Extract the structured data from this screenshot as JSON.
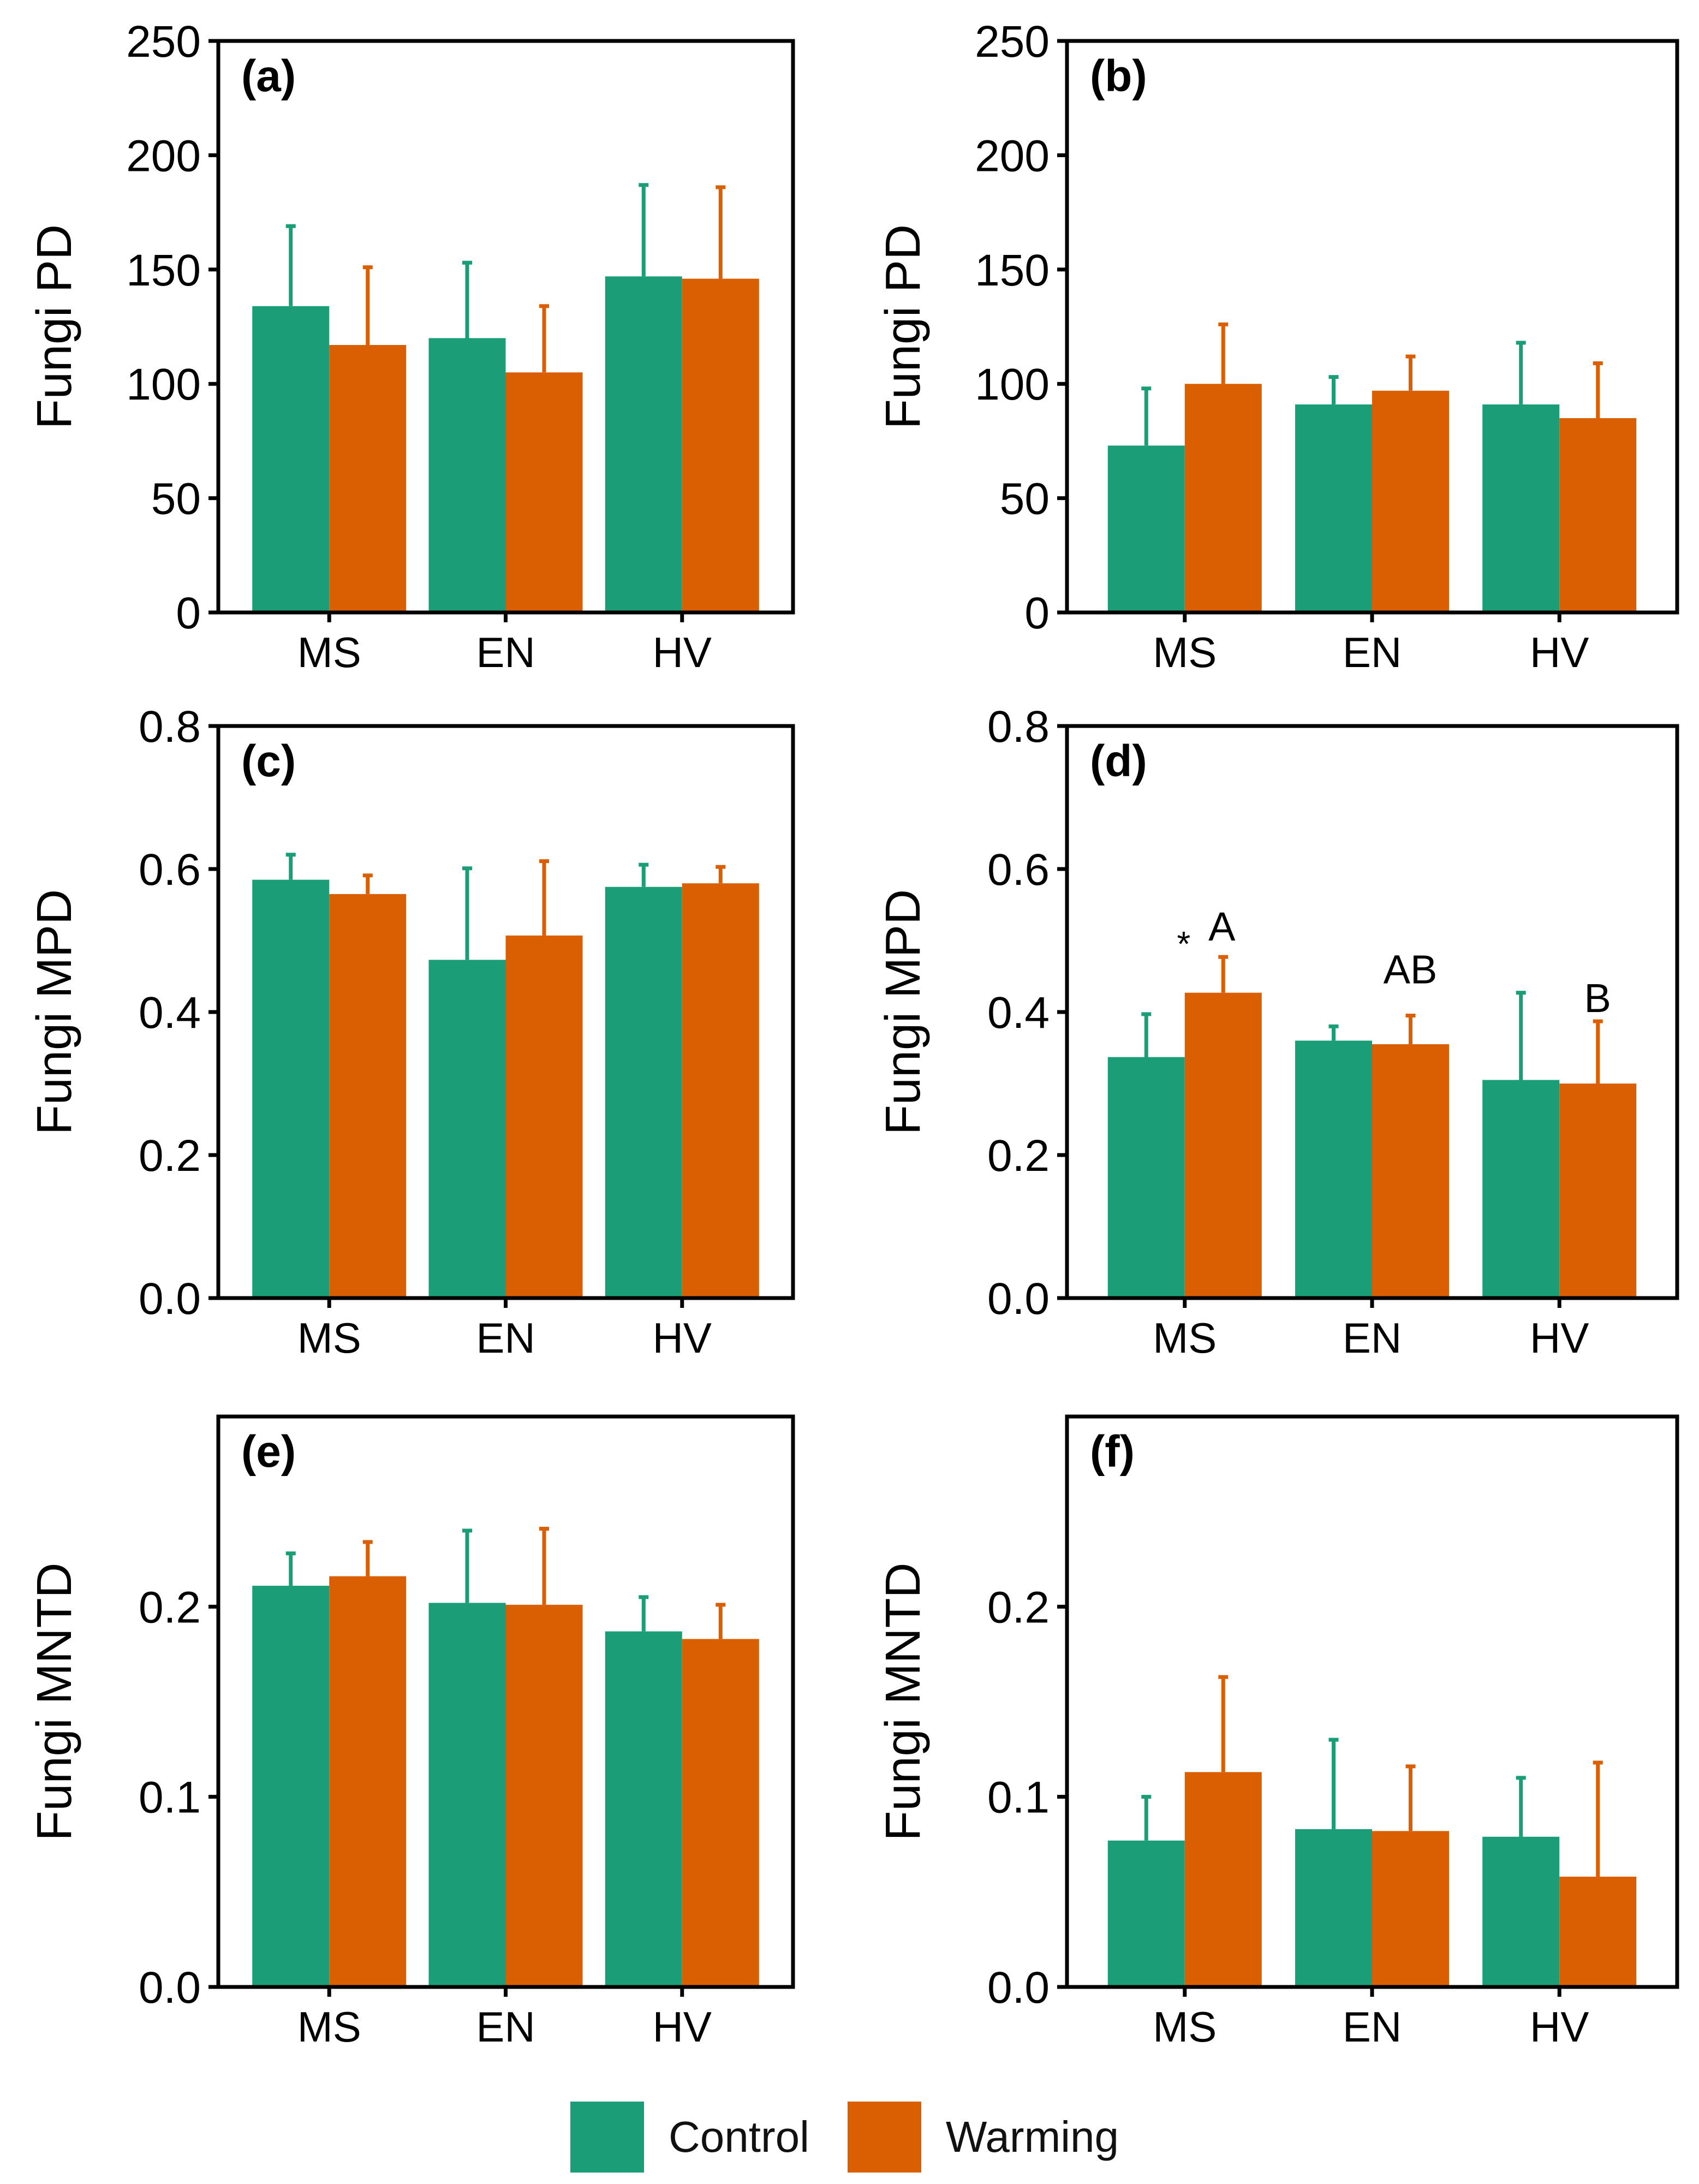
{
  "colors": {
    "control": "#1b9e77",
    "warming": "#d95f02",
    "axis": "#000000"
  },
  "legend": {
    "items": [
      {
        "label": "Control",
        "color": "#1b9e77"
      },
      {
        "label": "Warming",
        "color": "#d95f02"
      }
    ]
  },
  "chart_data": [
    {
      "type": "bar",
      "panel_label": "(a)",
      "ylabel": "Fungi PD",
      "ylim": [
        0,
        250
      ],
      "yticks": [
        "0",
        "50",
        "100",
        "150",
        "200",
        "250"
      ],
      "categories": [
        "MS",
        "EN",
        "HV"
      ],
      "series": [
        {
          "name": "Control",
          "values": [
            134,
            120,
            147
          ],
          "errors": [
            35,
            33,
            40
          ]
        },
        {
          "name": "Warming",
          "values": [
            117,
            105,
            146
          ],
          "errors": [
            34,
            29,
            40
          ]
        }
      ],
      "annotations": []
    },
    {
      "type": "bar",
      "panel_label": "(b)",
      "ylabel": "Fungi PD",
      "ylim": [
        0,
        250
      ],
      "yticks": [
        "0",
        "50",
        "100",
        "150",
        "200",
        "250"
      ],
      "categories": [
        "MS",
        "EN",
        "HV"
      ],
      "series": [
        {
          "name": "Control",
          "values": [
            73,
            91,
            91
          ],
          "errors": [
            25,
            12,
            27
          ]
        },
        {
          "name": "Warming",
          "values": [
            100,
            97,
            85
          ],
          "errors": [
            26,
            15,
            24
          ]
        }
      ],
      "annotations": []
    },
    {
      "type": "bar",
      "panel_label": "(c)",
      "ylabel": "Fungi MPD",
      "ylim": [
        0,
        0.8
      ],
      "yticks": [
        "0.0",
        "0.2",
        "0.4",
        "0.6",
        "0.8"
      ],
      "categories": [
        "MS",
        "EN",
        "HV"
      ],
      "series": [
        {
          "name": "Control",
          "values": [
            0.585,
            0.473,
            0.575
          ],
          "errors": [
            0.035,
            0.128,
            0.031
          ]
        },
        {
          "name": "Warming",
          "values": [
            0.565,
            0.507,
            0.58
          ],
          "errors": [
            0.026,
            0.104,
            0.023
          ]
        }
      ],
      "annotations": []
    },
    {
      "type": "bar",
      "panel_label": "(d)",
      "ylabel": "Fungi MPD",
      "ylim": [
        0,
        0.8
      ],
      "yticks": [
        "0.0",
        "0.2",
        "0.4",
        "0.6",
        "0.8"
      ],
      "categories": [
        "MS",
        "EN",
        "HV"
      ],
      "series": [
        {
          "name": "Control",
          "values": [
            0.337,
            0.36,
            0.305
          ],
          "errors": [
            0.06,
            0.02,
            0.122
          ]
        },
        {
          "name": "Warming",
          "values": [
            0.427,
            0.355,
            0.3
          ],
          "errors": [
            0.05,
            0.04,
            0.087
          ]
        }
      ],
      "annotations": [
        {
          "category": "MS",
          "text": "A",
          "marker": "*",
          "y": 0.5
        },
        {
          "category": "EN",
          "text": "AB",
          "marker": "",
          "y": 0.44
        },
        {
          "category": "HV",
          "text": "B",
          "marker": "",
          "y": 0.4
        }
      ]
    },
    {
      "type": "bar",
      "panel_label": "(e)",
      "ylabel": "Fungi MNTD",
      "ylim": [
        0,
        0.3
      ],
      "yticks": [
        "0.0",
        "0.1",
        "0.2"
      ],
      "yticks_values": [
        0,
        0.1,
        0.2
      ],
      "categories": [
        "MS",
        "EN",
        "HV"
      ],
      "series": [
        {
          "name": "Control",
          "values": [
            0.211,
            0.202,
            0.187
          ],
          "errors": [
            0.017,
            0.038,
            0.018
          ]
        },
        {
          "name": "Warming",
          "values": [
            0.216,
            0.201,
            0.183
          ],
          "errors": [
            0.018,
            0.04,
            0.018
          ]
        }
      ],
      "annotations": []
    },
    {
      "type": "bar",
      "panel_label": "(f)",
      "ylabel": "Fungi MNTD",
      "ylim": [
        0,
        0.3
      ],
      "yticks": [
        "0.0",
        "0.1",
        "0.2"
      ],
      "yticks_values": [
        0,
        0.1,
        0.2
      ],
      "categories": [
        "MS",
        "EN",
        "HV"
      ],
      "series": [
        {
          "name": "Control",
          "values": [
            0.077,
            0.083,
            0.079
          ],
          "errors": [
            0.023,
            0.047,
            0.031
          ]
        },
        {
          "name": "Warming",
          "values": [
            0.113,
            0.082,
            0.058
          ],
          "errors": [
            0.05,
            0.034,
            0.06
          ]
        }
      ],
      "annotations": []
    }
  ]
}
